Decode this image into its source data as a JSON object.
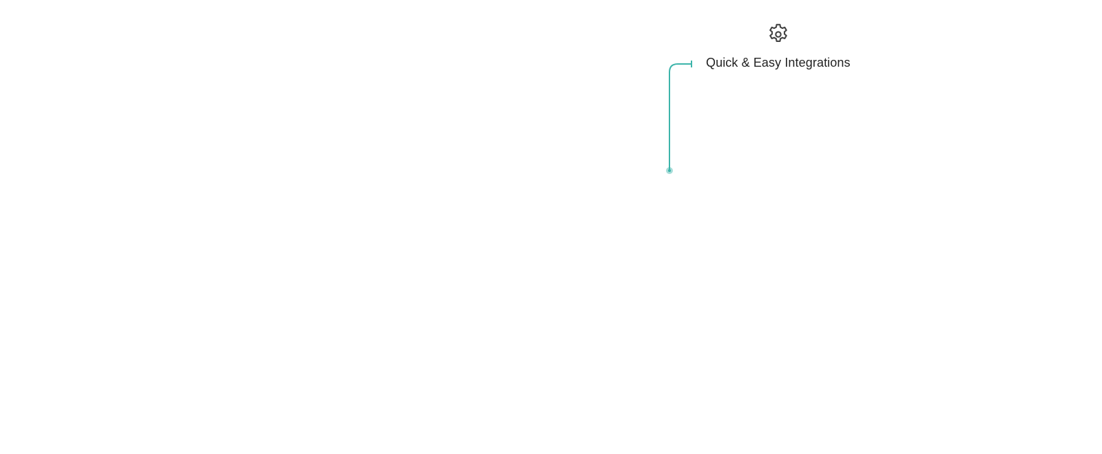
{
  "feature": {
    "title": "Quick & Easy Integrations",
    "icon": "gear-icon"
  },
  "colors": {
    "accent": "#3cb4aa",
    "text": "#222222",
    "icon": "#444444"
  }
}
